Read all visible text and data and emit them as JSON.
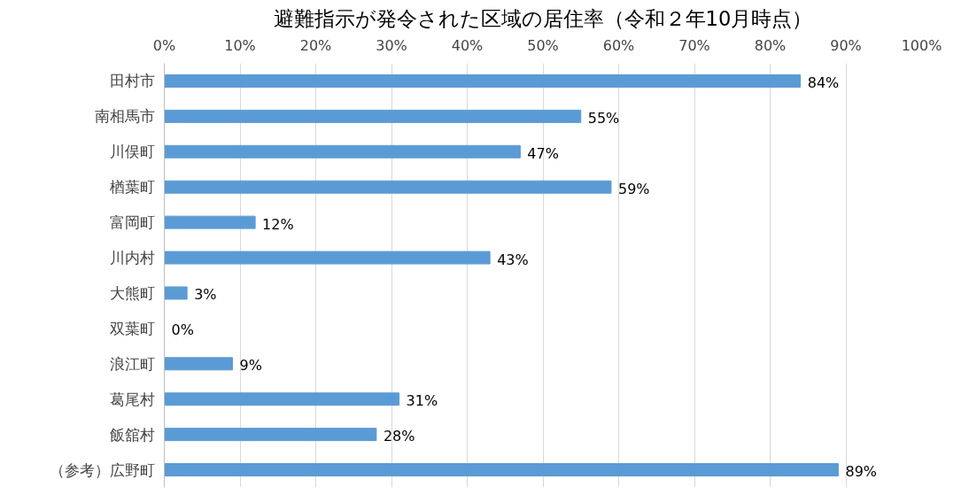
{
  "chart_data": {
    "type": "bar",
    "orientation": "horizontal",
    "title": "避難指示が発令された区域の居住率（令和２年10月時点）",
    "categories": [
      "田村市",
      "南相馬市",
      "川俣町",
      "楢葉町",
      "富岡町",
      "川内村",
      "大熊町",
      "双葉町",
      "浪江町",
      "葛尾村",
      "飯舘村",
      "（参考）広野町"
    ],
    "values": [
      84,
      55,
      47,
      59,
      12,
      43,
      3,
      0,
      9,
      31,
      28,
      89
    ],
    "value_labels": [
      "84%",
      "55%",
      "47%",
      "59%",
      "12%",
      "43%",
      "3%",
      "0%",
      "9%",
      "31%",
      "28%",
      "89%"
    ],
    "color": "#5b9bd5",
    "xlim": [
      0,
      100
    ],
    "xticks": [
      {
        "value": 0,
        "label": "0%"
      },
      {
        "value": 10,
        "label": "10%"
      },
      {
        "value": 20,
        "label": "20%"
      },
      {
        "value": 30,
        "label": "30%"
      },
      {
        "value": 40,
        "label": "40%"
      },
      {
        "value": 50,
        "label": "50%"
      },
      {
        "value": 60,
        "label": "60%"
      },
      {
        "value": 70,
        "label": "70%"
      },
      {
        "value": 80,
        "label": "80%"
      },
      {
        "value": 90,
        "label": "90%"
      },
      {
        "value": 100,
        "label": "100%"
      }
    ],
    "grid": "x"
  }
}
